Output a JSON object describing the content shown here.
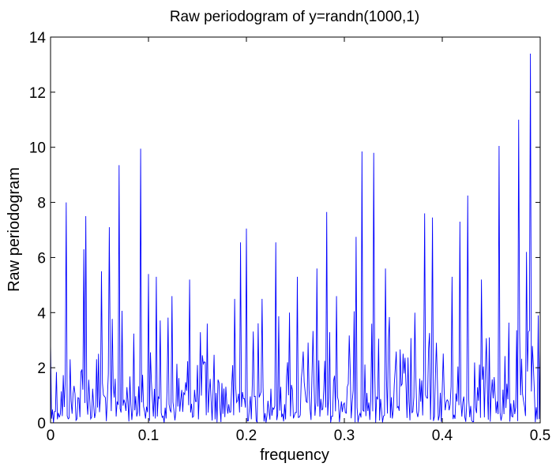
{
  "chart_data": {
    "type": "line",
    "title": "Raw periodogram of y=randn(1000,1)",
    "xlabel": "frequency",
    "ylabel": "Raw periodogram",
    "xlim": [
      0,
      0.5
    ],
    "ylim": [
      0,
      14
    ],
    "xticks": [
      0,
      0.1,
      0.2,
      0.3,
      0.4,
      0.5
    ],
    "xtick_labels": [
      "0",
      "0.1",
      "0.2",
      "0.3",
      "0.4",
      "0.5"
    ],
    "yticks": [
      0,
      2,
      4,
      6,
      8,
      10,
      12,
      14
    ],
    "ytick_labels": [
      "0",
      "2",
      "4",
      "6",
      "8",
      "10",
      "12",
      "14"
    ],
    "grid": false,
    "series_color": "#0000ff",
    "n_points": 501,
    "peaks": [
      {
        "x": 0.016,
        "y": 8.0
      },
      {
        "x": 0.036,
        "y": 7.5
      },
      {
        "x": 0.034,
        "y": 6.3
      },
      {
        "x": 0.06,
        "y": 7.1
      },
      {
        "x": 0.052,
        "y": 5.5
      },
      {
        "x": 0.07,
        "y": 9.35
      },
      {
        "x": 0.092,
        "y": 9.95
      },
      {
        "x": 0.1,
        "y": 5.4
      },
      {
        "x": 0.108,
        "y": 5.3
      },
      {
        "x": 0.124,
        "y": 4.6
      },
      {
        "x": 0.142,
        "y": 5.2
      },
      {
        "x": 0.16,
        "y": 3.6
      },
      {
        "x": 0.188,
        "y": 4.5
      },
      {
        "x": 0.194,
        "y": 6.55
      },
      {
        "x": 0.2,
        "y": 7.05
      },
      {
        "x": 0.216,
        "y": 4.5
      },
      {
        "x": 0.23,
        "y": 6.55
      },
      {
        "x": 0.244,
        "y": 4.0
      },
      {
        "x": 0.252,
        "y": 5.3
      },
      {
        "x": 0.272,
        "y": 5.6
      },
      {
        "x": 0.282,
        "y": 7.65
      },
      {
        "x": 0.292,
        "y": 4.6
      },
      {
        "x": 0.312,
        "y": 6.75
      },
      {
        "x": 0.318,
        "y": 9.85
      },
      {
        "x": 0.33,
        "y": 9.8
      },
      {
        "x": 0.342,
        "y": 5.6
      },
      {
        "x": 0.382,
        "y": 7.6
      },
      {
        "x": 0.39,
        "y": 7.45
      },
      {
        "x": 0.41,
        "y": 5.3
      },
      {
        "x": 0.418,
        "y": 7.3
      },
      {
        "x": 0.426,
        "y": 8.25
      },
      {
        "x": 0.44,
        "y": 5.2
      },
      {
        "x": 0.448,
        "y": 3.1
      },
      {
        "x": 0.458,
        "y": 10.05
      },
      {
        "x": 0.478,
        "y": 11.0
      },
      {
        "x": 0.486,
        "y": 6.2
      },
      {
        "x": 0.49,
        "y": 13.4
      },
      {
        "x": 0.498,
        "y": 3.9
      }
    ]
  }
}
